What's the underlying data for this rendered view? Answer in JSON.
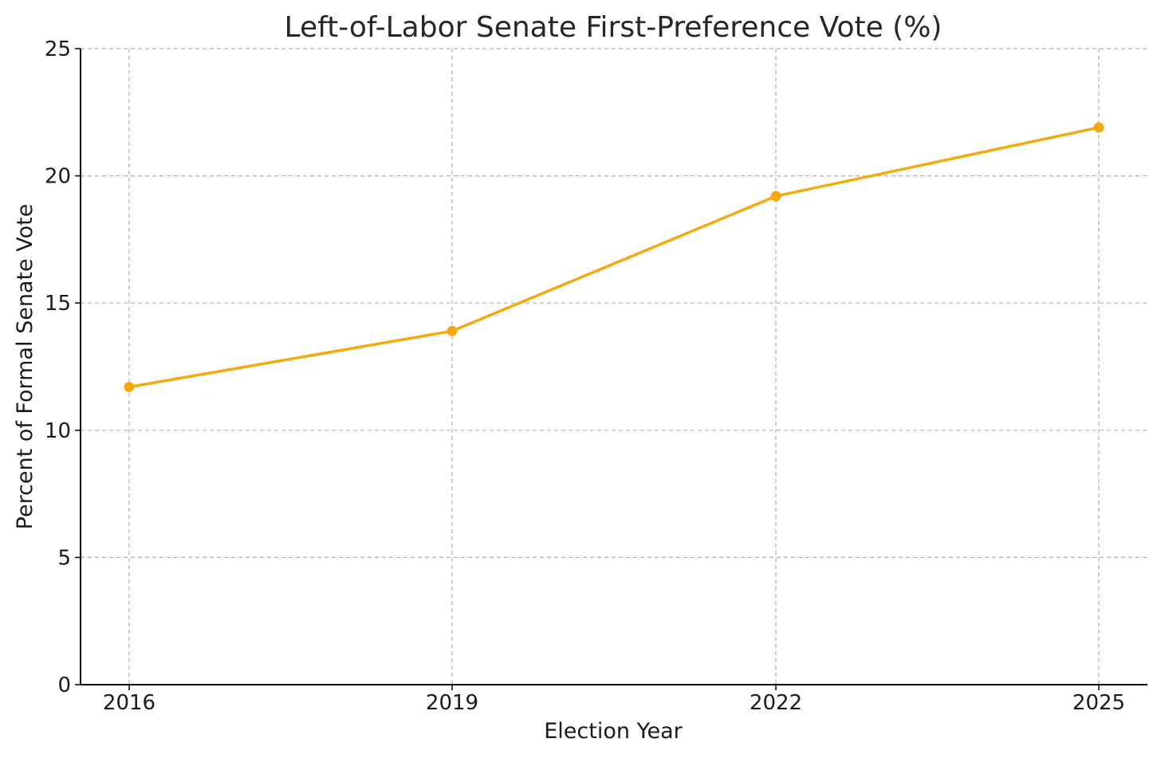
{
  "chart_data": {
    "type": "line",
    "title": "Left-of-Labor Senate First-Preference Vote (%)",
    "xlabel": "Election Year",
    "ylabel": "Percent of Formal Senate Vote",
    "x": [
      "2016",
      "2019",
      "2022",
      "2025"
    ],
    "series": [
      {
        "values": [
          11.7,
          13.9,
          19.2,
          21.9
        ],
        "color": "#f5a90f"
      }
    ],
    "ylim": [
      0,
      25
    ],
    "yticks": [
      "0",
      "5",
      "10",
      "15",
      "20",
      "25"
    ],
    "grid": true,
    "marker": "circle"
  }
}
